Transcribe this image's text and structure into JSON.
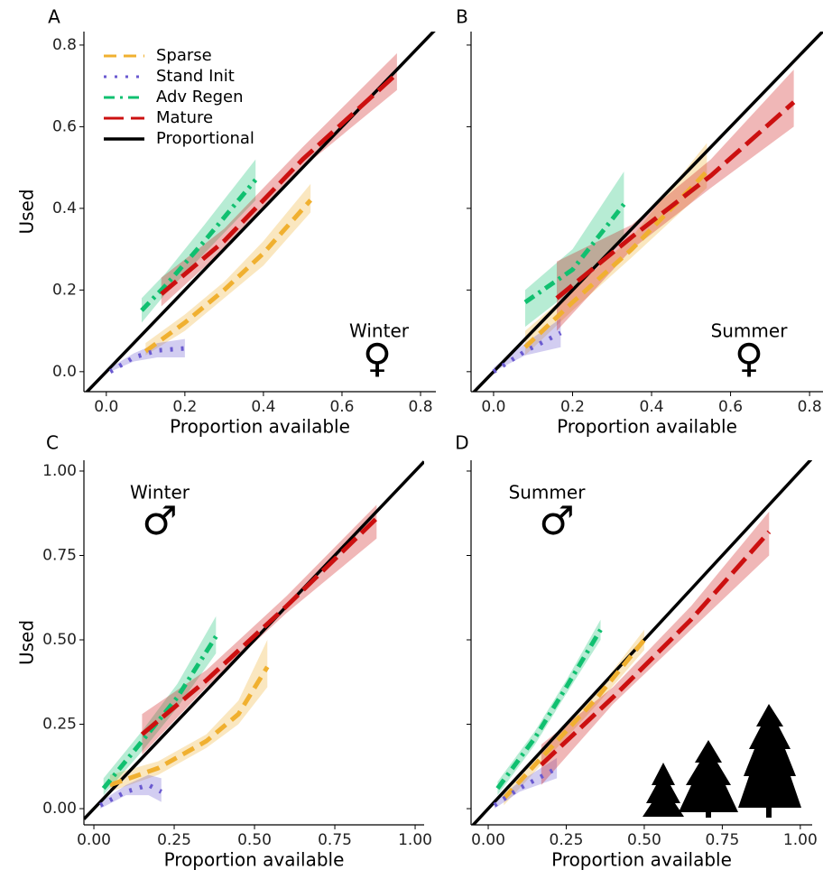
{
  "chart_data": [
    {
      "type": "line",
      "panel": "A",
      "season": "Winter",
      "sex": "♀",
      "xlabel": "Proportion available",
      "ylabel": "Used",
      "xlim": [
        -0.057,
        0.839
      ],
      "ylim": [
        -0.049,
        0.833
      ],
      "xticks": [
        {
          "value": 0,
          "label": "0.0"
        },
        0.2,
        0.4,
        0.6,
        0.8
      ],
      "yticks": [
        {
          "value": 0,
          "label": "0.0"
        },
        0.2,
        0.4,
        0.6,
        0.8
      ],
      "identity_line": {
        "name": "Proportional",
        "color": "#000000"
      },
      "series": [
        {
          "name": "Sparse",
          "color": "#f0b030",
          "dash": "dashed",
          "x": [
            0.1,
            0.2,
            0.3,
            0.4,
            0.52
          ],
          "values": [
            0.05,
            0.12,
            0.2,
            0.29,
            0.42
          ],
          "lower": [
            0.04,
            0.1,
            0.18,
            0.26,
            0.39
          ],
          "upper": [
            0.07,
            0.14,
            0.22,
            0.32,
            0.46
          ]
        },
        {
          "name": "Stand Init",
          "color": "#6a5ad0",
          "dash": "dotted",
          "x": [
            0.01,
            0.07,
            0.13,
            0.2
          ],
          "values": [
            0.0,
            0.035,
            0.052,
            0.057
          ],
          "lower": [
            0.0,
            0.025,
            0.035,
            0.035
          ],
          "upper": [
            0.01,
            0.045,
            0.07,
            0.08
          ]
        },
        {
          "name": "Adv Regen",
          "color": "#10c070",
          "dash": "dotdash",
          "x": [
            0.09,
            0.15,
            0.25,
            0.38
          ],
          "values": [
            0.15,
            0.21,
            0.32,
            0.47
          ],
          "lower": [
            0.12,
            0.19,
            0.29,
            0.42
          ],
          "upper": [
            0.18,
            0.24,
            0.36,
            0.52
          ]
        },
        {
          "name": "Mature",
          "color": "#cc1010",
          "dash": "longdash",
          "x": [
            0.14,
            0.3,
            0.5,
            0.74
          ],
          "values": [
            0.19,
            0.32,
            0.52,
            0.73
          ],
          "lower": [
            0.16,
            0.3,
            0.5,
            0.69
          ],
          "upper": [
            0.23,
            0.35,
            0.55,
            0.78
          ]
        }
      ]
    },
    {
      "type": "line",
      "panel": "B",
      "season": "Summer",
      "sex": "♀",
      "xlabel": "Proportion available",
      "xlim": [
        -0.057,
        0.834
      ],
      "ylim": [
        -0.049,
        0.833
      ],
      "xticks": [
        {
          "value": 0,
          "label": "0.0"
        },
        0.2,
        0.4,
        0.6,
        0.8
      ],
      "yticks": [
        0,
        0.2,
        0.4,
        0.6,
        0.8
      ],
      "identity_line": {
        "color": "#000000"
      },
      "series": [
        {
          "color": "#f0b030",
          "dash": "dashed",
          "x": [
            0.08,
            0.2,
            0.35,
            0.54
          ],
          "values": [
            0.06,
            0.17,
            0.3,
            0.49
          ],
          "lower": [
            0.04,
            0.15,
            0.28,
            0.45
          ],
          "upper": [
            0.1,
            0.2,
            0.33,
            0.56
          ]
        },
        {
          "color": "#6a5ad0",
          "dash": "dotted",
          "x": [
            0.0,
            0.08,
            0.17
          ],
          "values": [
            0.0,
            0.05,
            0.095
          ],
          "lower": [
            0.0,
            0.04,
            0.06
          ],
          "upper": [
            0.01,
            0.07,
            0.13
          ]
        },
        {
          "color": "#10c070",
          "dash": "dotdash",
          "x": [
            0.08,
            0.2,
            0.33
          ],
          "values": [
            0.17,
            0.25,
            0.41
          ],
          "lower": [
            0.11,
            0.2,
            0.33
          ],
          "upper": [
            0.2,
            0.3,
            0.49
          ]
        },
        {
          "color": "#cc1010",
          "dash": "longdash",
          "x": [
            0.16,
            0.35,
            0.55,
            0.76
          ],
          "values": [
            0.18,
            0.33,
            0.48,
            0.66
          ],
          "lower": [
            0.1,
            0.3,
            0.45,
            0.6
          ],
          "upper": [
            0.27,
            0.36,
            0.52,
            0.74
          ]
        }
      ]
    },
    {
      "type": "line",
      "panel": "C",
      "season": "Winter",
      "sex": "♂",
      "xlabel": "Proportion available",
      "ylabel": "Used",
      "xlim": [
        -0.031,
        1.028
      ],
      "ylim": [
        -0.048,
        1.032
      ],
      "xticks": [
        {
          "value": 0,
          "label": "0.00"
        },
        0.25,
        {
          "value": 0.5,
          "label": "0.50"
        },
        0.75,
        {
          "value": 1,
          "label": "1.00"
        }
      ],
      "yticks": [
        {
          "value": 0,
          "label": "0.00"
        },
        0.25,
        {
          "value": 0.5,
          "label": "0.50"
        },
        0.75,
        {
          "value": 1,
          "label": "1.00"
        }
      ],
      "identity_line": {
        "color": "#000000"
      },
      "series": [
        {
          "color": "#f0b030",
          "dash": "dashed",
          "x": [
            0.05,
            0.2,
            0.35,
            0.45,
            0.54
          ],
          "values": [
            0.07,
            0.12,
            0.2,
            0.28,
            0.42
          ],
          "lower": [
            0.05,
            0.1,
            0.18,
            0.25,
            0.36
          ],
          "upper": [
            0.1,
            0.14,
            0.22,
            0.32,
            0.5
          ]
        },
        {
          "color": "#6a5ad0",
          "dash": "dotted",
          "x": [
            0.02,
            0.1,
            0.17,
            0.21
          ],
          "values": [
            0.01,
            0.05,
            0.07,
            0.05
          ],
          "lower": [
            0.0,
            0.04,
            0.04,
            0.02
          ],
          "upper": [
            0.02,
            0.07,
            0.1,
            0.09
          ]
        },
        {
          "color": "#10c070",
          "dash": "dotdash",
          "x": [
            0.03,
            0.15,
            0.26,
            0.38
          ],
          "values": [
            0.06,
            0.2,
            0.33,
            0.51
          ],
          "lower": [
            0.04,
            0.17,
            0.3,
            0.46
          ],
          "upper": [
            0.09,
            0.23,
            0.37,
            0.57
          ]
        },
        {
          "color": "#cc1010",
          "dash": "longdash",
          "x": [
            0.15,
            0.35,
            0.6,
            0.88
          ],
          "values": [
            0.22,
            0.38,
            0.6,
            0.86
          ],
          "lower": [
            0.16,
            0.36,
            0.58,
            0.8
          ],
          "upper": [
            0.28,
            0.41,
            0.63,
            0.9
          ]
        }
      ]
    },
    {
      "type": "line",
      "panel": "D",
      "season": "Summer",
      "sex": "♂",
      "xlabel": "Proportion available",
      "xlim": [
        -0.055,
        1.038
      ],
      "ylim": [
        -0.048,
        1.032
      ],
      "xticks": [
        {
          "value": 0,
          "label": "0.00"
        },
        0.25,
        {
          "value": 0.5,
          "label": "0.50"
        },
        0.75,
        {
          "value": 1,
          "label": "1.00"
        }
      ],
      "yticks": [
        0,
        0.25,
        0.5,
        0.75,
        1
      ],
      "identity_line": {
        "color": "#000000"
      },
      "series": [
        {
          "color": "#f0b030",
          "dash": "dashed",
          "x": [
            0.05,
            0.2,
            0.35,
            0.5
          ],
          "values": [
            0.03,
            0.18,
            0.33,
            0.5
          ],
          "lower": [
            0.01,
            0.16,
            0.31,
            0.47
          ],
          "upper": [
            0.05,
            0.2,
            0.35,
            0.53
          ]
        },
        {
          "color": "#6a5ad0",
          "dash": "dotted",
          "x": [
            0.02,
            0.1,
            0.22
          ],
          "values": [
            0.01,
            0.06,
            0.12
          ],
          "lower": [
            0.0,
            0.05,
            0.09
          ],
          "upper": [
            0.02,
            0.08,
            0.15
          ]
        },
        {
          "color": "#10c070",
          "dash": "dotdash",
          "x": [
            0.03,
            0.15,
            0.25,
            0.36
          ],
          "values": [
            0.06,
            0.21,
            0.36,
            0.53
          ],
          "lower": [
            0.04,
            0.19,
            0.34,
            0.5
          ],
          "upper": [
            0.08,
            0.23,
            0.38,
            0.56
          ]
        },
        {
          "color": "#cc1010",
          "dash": "longdash",
          "x": [
            0.17,
            0.4,
            0.65,
            0.9
          ],
          "values": [
            0.13,
            0.33,
            0.56,
            0.82
          ],
          "lower": [
            0.07,
            0.31,
            0.53,
            0.75
          ],
          "upper": [
            0.19,
            0.36,
            0.6,
            0.88
          ]
        }
      ]
    }
  ]
}
